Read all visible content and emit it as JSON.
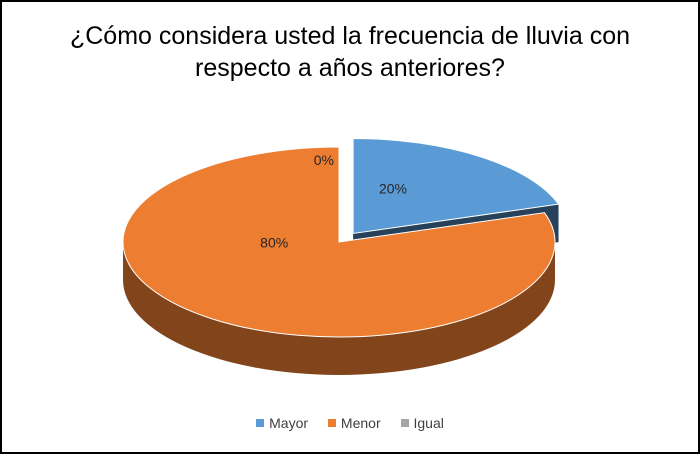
{
  "chart_data": {
    "type": "pie",
    "title_lines": [
      "¿Cómo considera usted la frecuencia de lluvia con",
      "respecto a años anteriores?"
    ],
    "categories": [
      "Mayor",
      "Menor",
      "Igual"
    ],
    "values": [
      20,
      80,
      0
    ],
    "data_labels": [
      "20%",
      "80%",
      "0%"
    ],
    "colors": [
      "#5B9BD5",
      "#ED7D31",
      "#A5A5A5"
    ],
    "exploded": "Mayor",
    "legend_position": "bottom"
  }
}
